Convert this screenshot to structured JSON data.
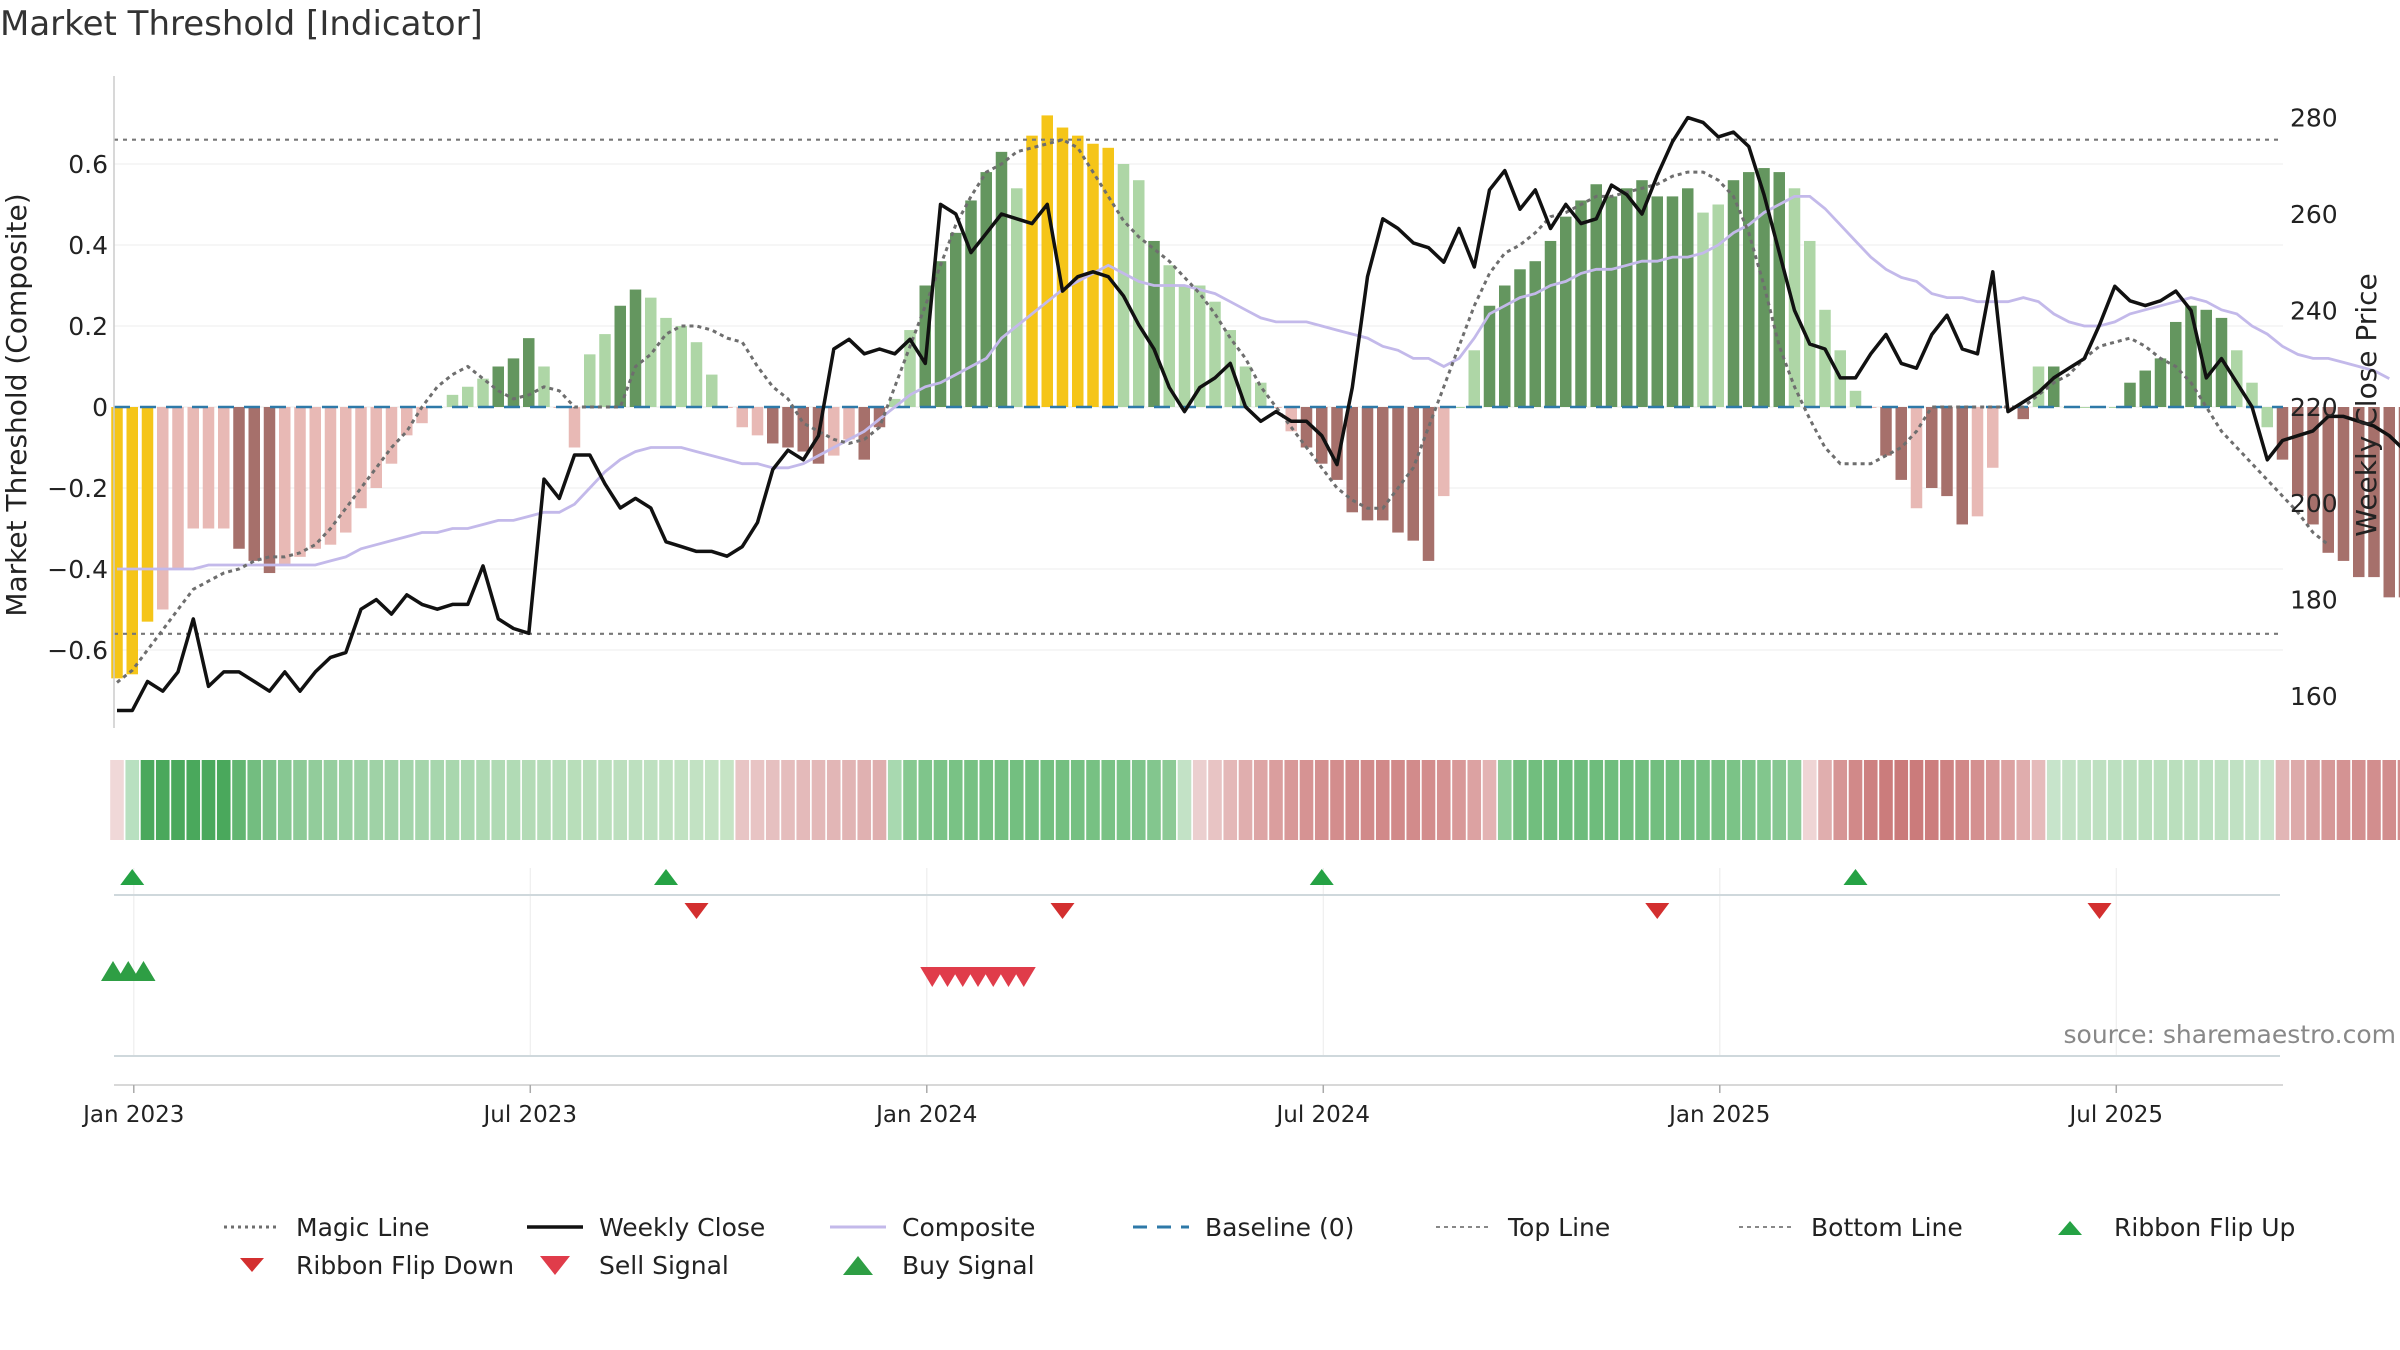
{
  "chart_data": {
    "type": "bar",
    "title": "Market Threshold [Indicator]",
    "ylabel": "Market Threshold (Composite)",
    "y2label": "Weekly Close Price",
    "ylim": [
      -0.78,
      0.8
    ],
    "y2lim": [
      147,
      283
    ],
    "yticks": [
      -0.6,
      -0.4,
      -0.2,
      0,
      0.2,
      0.4,
      0.6
    ],
    "ytick_labels": [
      "−0.6",
      "−0.4",
      "−0.2",
      "0",
      "0.2",
      "0.4",
      "0.6"
    ],
    "y2ticks": [
      160,
      180,
      200,
      220,
      240,
      260,
      280
    ],
    "xticks": [
      {
        "label": "Jan 2023",
        "index": 1.1
      },
      {
        "label": "Jul 2023",
        "index": 27.1
      },
      {
        "label": "Jan 2024",
        "index": 53.1
      },
      {
        "label": "Jul 2024",
        "index": 79.1
      },
      {
        "label": "Jan 2025",
        "index": 105.1
      },
      {
        "label": "Jul 2025",
        "index": 131.1
      }
    ],
    "top_line": 0.66,
    "bottom_line": -0.56,
    "baseline": 0,
    "bars": [
      -0.67,
      -0.66,
      -0.53,
      -0.5,
      -0.4,
      -0.3,
      -0.3,
      -0.3,
      -0.35,
      -0.38,
      -0.41,
      -0.39,
      -0.37,
      -0.35,
      -0.34,
      -0.31,
      -0.25,
      -0.2,
      -0.14,
      -0.07,
      -0.04,
      0,
      0.03,
      0.05,
      0.07,
      0.1,
      0.12,
      0.17,
      0.1,
      0,
      -0.1,
      0.13,
      0.18,
      0.25,
      0.29,
      0.27,
      0.22,
      0.2,
      0.16,
      0.08,
      0,
      -0.05,
      -0.07,
      -0.09,
      -0.1,
      -0.11,
      -0.14,
      -0.12,
      -0.08,
      -0.13,
      -0.05,
      0.02,
      0.19,
      0.3,
      0.36,
      0.43,
      0.51,
      0.58,
      0.63,
      0.54,
      0.67,
      0.72,
      0.69,
      0.67,
      0.65,
      0.64,
      0.6,
      0.56,
      0.41,
      0.35,
      0.3,
      0.3,
      0.26,
      0.19,
      0.1,
      0.06,
      0,
      -0.06,
      -0.1,
      -0.14,
      -0.18,
      -0.26,
      -0.28,
      -0.28,
      -0.31,
      -0.33,
      -0.38,
      -0.22,
      0,
      0.14,
      0.25,
      0.3,
      0.34,
      0.36,
      0.41,
      0.47,
      0.51,
      0.55,
      0.52,
      0.54,
      0.56,
      0.52,
      0.52,
      0.54,
      0.48,
      0.5,
      0.56,
      0.58,
      0.59,
      0.58,
      0.54,
      0.41,
      0.24,
      0.14,
      0.04,
      0,
      -0.12,
      -0.18,
      -0.25,
      -0.2,
      -0.22,
      -0.29,
      -0.27,
      -0.15,
      0,
      -0.03,
      0.1,
      0.1,
      0,
      0,
      0,
      0,
      0.06,
      0.09,
      0.12,
      0.21,
      0.25,
      0.24,
      0.22,
      0.14,
      0.06,
      -0.05,
      -0.13,
      -0.22,
      -0.29,
      -0.36,
      -0.38,
      -0.42,
      -0.42,
      -0.47,
      -0.47
    ],
    "bar_colors": [
      "gold",
      "gold",
      "gold",
      "lightred",
      "lightred",
      "lightred",
      "lightred",
      "lightred",
      "darkred",
      "darkred",
      "darkred",
      "lightred",
      "lightred",
      "lightred",
      "lightred",
      "lightred",
      "lightred",
      "lightred",
      "lightred",
      "lightred",
      "lightred",
      "lightgreen",
      "lightgreen",
      "lightgreen",
      "lightgreen",
      "darkgreen",
      "darkgreen",
      "darkgreen",
      "lightgreen",
      "lightred",
      "lightred",
      "lightgreen",
      "lightgreen",
      "darkgreen",
      "darkgreen",
      "lightgreen",
      "lightgreen",
      "lightgreen",
      "lightgreen",
      "lightgreen",
      "lightred",
      "lightred",
      "lightred",
      "darkred",
      "darkred",
      "darkred",
      "darkred",
      "lightred",
      "lightred",
      "darkred",
      "darkred",
      "lightgreen",
      "lightgreen",
      "darkgreen",
      "darkgreen",
      "darkgreen",
      "darkgreen",
      "darkgreen",
      "darkgreen",
      "lightgreen",
      "gold",
      "gold",
      "gold",
      "gold",
      "gold",
      "gold",
      "lightgreen",
      "lightgreen",
      "darkgreen",
      "lightgreen",
      "lightgreen",
      "lightgreen",
      "lightgreen",
      "lightgreen",
      "lightgreen",
      "lightgreen",
      "lightred",
      "lightred",
      "darkred",
      "darkred",
      "darkred",
      "darkred",
      "darkred",
      "darkred",
      "darkred",
      "darkred",
      "darkred",
      "lightred",
      "lightgreen",
      "lightgreen",
      "darkgreen",
      "darkgreen",
      "darkgreen",
      "darkgreen",
      "darkgreen",
      "darkgreen",
      "darkgreen",
      "darkgreen",
      "darkgreen",
      "darkgreen",
      "darkgreen",
      "darkgreen",
      "darkgreen",
      "darkgreen",
      "lightgreen",
      "lightgreen",
      "darkgreen",
      "darkgreen",
      "darkgreen",
      "darkgreen",
      "lightgreen",
      "lightgreen",
      "lightgreen",
      "lightgreen",
      "lightgreen",
      "lightred",
      "darkred",
      "darkred",
      "lightred",
      "darkred",
      "darkred",
      "darkred",
      "lightred",
      "lightred",
      "lightred",
      "darkred",
      "lightgreen",
      "darkgreen",
      "lightgreen",
      "lightgreen",
      "lightgreen",
      "lightgreen",
      "darkgreen",
      "darkgreen",
      "darkgreen",
      "darkgreen",
      "darkgreen",
      "darkgreen",
      "darkgreen",
      "lightgreen",
      "lightgreen",
      "lightgreen",
      "darkred",
      "darkred",
      "darkred",
      "darkred",
      "darkred",
      "darkred",
      "darkred",
      "darkred",
      "darkred",
      "darkred"
    ],
    "series": [
      {
        "name": "Magic Line",
        "values": [
          -0.68,
          -0.65,
          -0.6,
          -0.55,
          -0.5,
          -0.45,
          -0.43,
          -0.41,
          -0.4,
          -0.38,
          -0.37,
          -0.37,
          -0.36,
          -0.34,
          -0.3,
          -0.25,
          -0.2,
          -0.15,
          -0.1,
          -0.06,
          0,
          0.05,
          0.08,
          0.1,
          0.07,
          0.04,
          0.02,
          0.03,
          0.05,
          0.04,
          0,
          0,
          0,
          0,
          0.1,
          0.13,
          0.18,
          0.2,
          0.2,
          0.19,
          0.17,
          0.16,
          0.1,
          0.05,
          0.02,
          -0.04,
          -0.06,
          -0.08,
          -0.09,
          -0.08,
          -0.05,
          0.05,
          0.15,
          0.25,
          0.35,
          0.45,
          0.52,
          0.58,
          0.6,
          0.63,
          0.64,
          0.65,
          0.66,
          0.64,
          0.58,
          0.52,
          0.46,
          0.42,
          0.39,
          0.36,
          0.32,
          0.28,
          0.23,
          0.17,
          0.12,
          0.05,
          0,
          -0.05,
          -0.1,
          -0.15,
          -0.2,
          -0.23,
          -0.25,
          -0.25,
          -0.2,
          -0.15,
          -0.05,
          0.05,
          0.15,
          0.25,
          0.33,
          0.38,
          0.4,
          0.43,
          0.47,
          0.48,
          0.5,
          0.52,
          0.52,
          0.53,
          0.54,
          0.55,
          0.57,
          0.58,
          0.58,
          0.56,
          0.52,
          0.43,
          0.3,
          0.15,
          0.05,
          -0.03,
          -0.1,
          -0.14,
          -0.14,
          -0.14,
          -0.12,
          -0.1,
          -0.06,
          0,
          0,
          0,
          0,
          0,
          0,
          0,
          0.03,
          0.06,
          0.08,
          0.12,
          0.15,
          0.16,
          0.17,
          0.15,
          0.12,
          0.1,
          0.06,
          0,
          -0.06,
          -0.1,
          -0.14,
          -0.18,
          -0.22,
          -0.26,
          -0.31,
          -0.34
        ]
      },
      {
        "name": "Weekly Close",
        "values": [
          157,
          157,
          163,
          161,
          165,
          176,
          162,
          165,
          165,
          163,
          161,
          165,
          161,
          165,
          168,
          169,
          178,
          180,
          177,
          181,
          179,
          178,
          179,
          179,
          187,
          176,
          174,
          173,
          205,
          201,
          210,
          210,
          204,
          199,
          201,
          199,
          192,
          191,
          190,
          190,
          189,
          191,
          196,
          207,
          211,
          209,
          214,
          232,
          234,
          231,
          232,
          231,
          234,
          229,
          262,
          260,
          252,
          256,
          260,
          259,
          258,
          262,
          244,
          247,
          248,
          247,
          243,
          237,
          232,
          224,
          219,
          224,
          226,
          229,
          220,
          217,
          219,
          217,
          217,
          214,
          208,
          224,
          247,
          259,
          257,
          254,
          253,
          250,
          257,
          249,
          265,
          269,
          261,
          265,
          257,
          262,
          258,
          259,
          266,
          264,
          260,
          268,
          275,
          280,
          279,
          276,
          277,
          274,
          264,
          252,
          240,
          233,
          232,
          226,
          226,
          231,
          235,
          229,
          228,
          235,
          239,
          232,
          231,
          248,
          219,
          221,
          223,
          226,
          228,
          230,
          237,
          245,
          242,
          241,
          242,
          244,
          240,
          226,
          230,
          225,
          220,
          209,
          213,
          214,
          215,
          218,
          218,
          217,
          216,
          214,
          211,
          210
        ]
      },
      {
        "name": "Composite",
        "values": [
          -0.4,
          -0.4,
          -0.4,
          -0.4,
          -0.4,
          -0.4,
          -0.39,
          -0.39,
          -0.39,
          -0.39,
          -0.39,
          -0.39,
          -0.39,
          -0.39,
          -0.38,
          -0.37,
          -0.35,
          -0.34,
          -0.33,
          -0.32,
          -0.31,
          -0.31,
          -0.3,
          -0.3,
          -0.29,
          -0.28,
          -0.28,
          -0.27,
          -0.26,
          -0.26,
          -0.24,
          -0.2,
          -0.16,
          -0.13,
          -0.11,
          -0.1,
          -0.1,
          -0.1,
          -0.11,
          -0.12,
          -0.13,
          -0.14,
          -0.14,
          -0.15,
          -0.15,
          -0.14,
          -0.12,
          -0.1,
          -0.08,
          -0.06,
          -0.03,
          0,
          0.03,
          0.05,
          0.06,
          0.08,
          0.1,
          0.12,
          0.17,
          0.2,
          0.23,
          0.26,
          0.29,
          0.31,
          0.33,
          0.35,
          0.33,
          0.31,
          0.3,
          0.3,
          0.3,
          0.29,
          0.28,
          0.26,
          0.24,
          0.22,
          0.21,
          0.21,
          0.21,
          0.2,
          0.19,
          0.18,
          0.17,
          0.15,
          0.14,
          0.12,
          0.12,
          0.1,
          0.12,
          0.17,
          0.23,
          0.25,
          0.27,
          0.28,
          0.3,
          0.31,
          0.33,
          0.34,
          0.34,
          0.35,
          0.36,
          0.36,
          0.37,
          0.37,
          0.38,
          0.4,
          0.43,
          0.45,
          0.48,
          0.5,
          0.52,
          0.52,
          0.49,
          0.45,
          0.41,
          0.37,
          0.34,
          0.32,
          0.31,
          0.28,
          0.27,
          0.27,
          0.26,
          0.26,
          0.26,
          0.27,
          0.26,
          0.23,
          0.21,
          0.2,
          0.2,
          0.21,
          0.23,
          0.24,
          0.25,
          0.26,
          0.27,
          0.26,
          0.24,
          0.23,
          0.2,
          0.18,
          0.15,
          0.13,
          0.12,
          0.12,
          0.11,
          0.1,
          0.09,
          0.07
        ]
      }
    ],
    "ribbon_colors": [
      "#f0d8d8",
      "#b8e0c0",
      "#4aa85c",
      "#4aa85c",
      "#4aa85c",
      "#4aa85c",
      "#4aa85c",
      "#4aa85c",
      "#62b571",
      "#73bd80",
      "#7fc38b",
      "#87c792",
      "#8dca97",
      "#92cc9b",
      "#96ce9f",
      "#9ad0a2",
      "#9cd1a4",
      "#9fd2a6",
      "#a1d3a8",
      "#a3d4aa",
      "#a5d5ab",
      "#a7d6ad",
      "#a9d7ae",
      "#abd8b0",
      "#aed9b2",
      "#b0dab4",
      "#b1dbb5",
      "#b3dbb6",
      "#b5dcb8",
      "#b6ddb9",
      "#b8deba",
      "#b9debb",
      "#bbdfbd",
      "#bcdfbe",
      "#bde0bf",
      "#bee0c0",
      "#c0e1c1",
      "#c1e2c2",
      "#c2e2c3",
      "#c4e3c4",
      "#c6e4c5",
      "#e8c5c5",
      "#e8c4c4",
      "#e6c0c0",
      "#e5bdbd",
      "#e4baba",
      "#e3b8b8",
      "#e2b6b6",
      "#e1b4b4",
      "#e0b1b1",
      "#dfaeae",
      "#a8d9b0",
      "#86c991",
      "#7fc58b",
      "#7bc387",
      "#79c285",
      "#77c183",
      "#76c082",
      "#74bf81",
      "#73bf80",
      "#73bf80",
      "#73bf80",
      "#74bf81",
      "#75c082",
      "#77c183",
      "#79c285",
      "#7bc387",
      "#7ec48a",
      "#83c68e",
      "#8cca96",
      "#c3e2c6",
      "#ebcfcf",
      "#e8c4c4",
      "#e4b8b8",
      "#e0aeae",
      "#dda5a5",
      "#da9e9e",
      "#d89898",
      "#d69393",
      "#d49090",
      "#d38d8d",
      "#d28b8b",
      "#d18a8a",
      "#d18989",
      "#d18989",
      "#d28b8b",
      "#d38d8d",
      "#d59292",
      "#d89898",
      "#dca2a2",
      "#e3b3b3",
      "#8fcc99",
      "#74bf81",
      "#71be7e",
      "#6fbd7d",
      "#6ebc7c",
      "#6ebc7c",
      "#6ebc7c",
      "#6fbd7d",
      "#70bd7d",
      "#71be7e",
      "#72be7f",
      "#73bf80",
      "#74bf81",
      "#76c082",
      "#78c184",
      "#7bc387",
      "#7ec48a",
      "#82c68d",
      "#87c792",
      "#8fcc99",
      "#efd5d5",
      "#e0aeae",
      "#d69595",
      "#d18989",
      "#cd8080",
      "#cb7c7c",
      "#ca7a7a",
      "#cb7b7b",
      "#cc7d7d",
      "#ce8282",
      "#d18888",
      "#d49090",
      "#d89898",
      "#dca2a2",
      "#e0adad",
      "#e5bbbb",
      "#c7e4cb",
      "#c3e2c6",
      "#c0e1c3",
      "#bee0c1",
      "#bce0c0",
      "#bbdfbe",
      "#badfbd",
      "#badfbd",
      "#badfbd",
      "#bbdfbe",
      "#bce0c0",
      "#bee0c1",
      "#c0e1c3",
      "#c3e2c6",
      "#c8e5cb",
      "#e2b6b6",
      "#ddaaaa",
      "#d9a0a0",
      "#d69898",
      "#d49393",
      "#d39090",
      "#d28e8e",
      "#d28d8d",
      "#d28d8d",
      "#d28e8e",
      "#d39090",
      "#d49393"
    ],
    "ribbon_flip_up": [
      1,
      36,
      79,
      114
    ],
    "ribbon_flip_down": [
      38,
      62,
      101,
      130
    ],
    "buy_signals": [
      0,
      1,
      2
    ],
    "sell_signals": [
      53,
      54,
      55,
      56,
      57,
      58,
      59
    ],
    "legend": {
      "magic_line": "Magic Line",
      "weekly_close": "Weekly Close",
      "composite": "Composite",
      "baseline": "Baseline (0)",
      "top_line": "Top Line",
      "bottom_line": "Bottom Line",
      "flip_up": "Ribbon Flip Up",
      "flip_down": "Ribbon Flip Down",
      "sell": "Sell Signal",
      "buy": "Buy Signal"
    },
    "colors": {
      "gold": "#f5c518",
      "lightred": "#e8b9b5",
      "darkred": "#a6706b",
      "lightgreen": "#aed6a6",
      "darkgreen": "#64965f",
      "composite": "#c3b9ea",
      "baseline": "#2e79a8",
      "magic": "#6e6e6e",
      "close": "#111111",
      "signal_green": "#25a244",
      "flip_red": "#d32f2f",
      "sell_red": "#e03c4a",
      "buy_green": "#2e9e44"
    }
  },
  "source": "source: sharemaestro.com"
}
